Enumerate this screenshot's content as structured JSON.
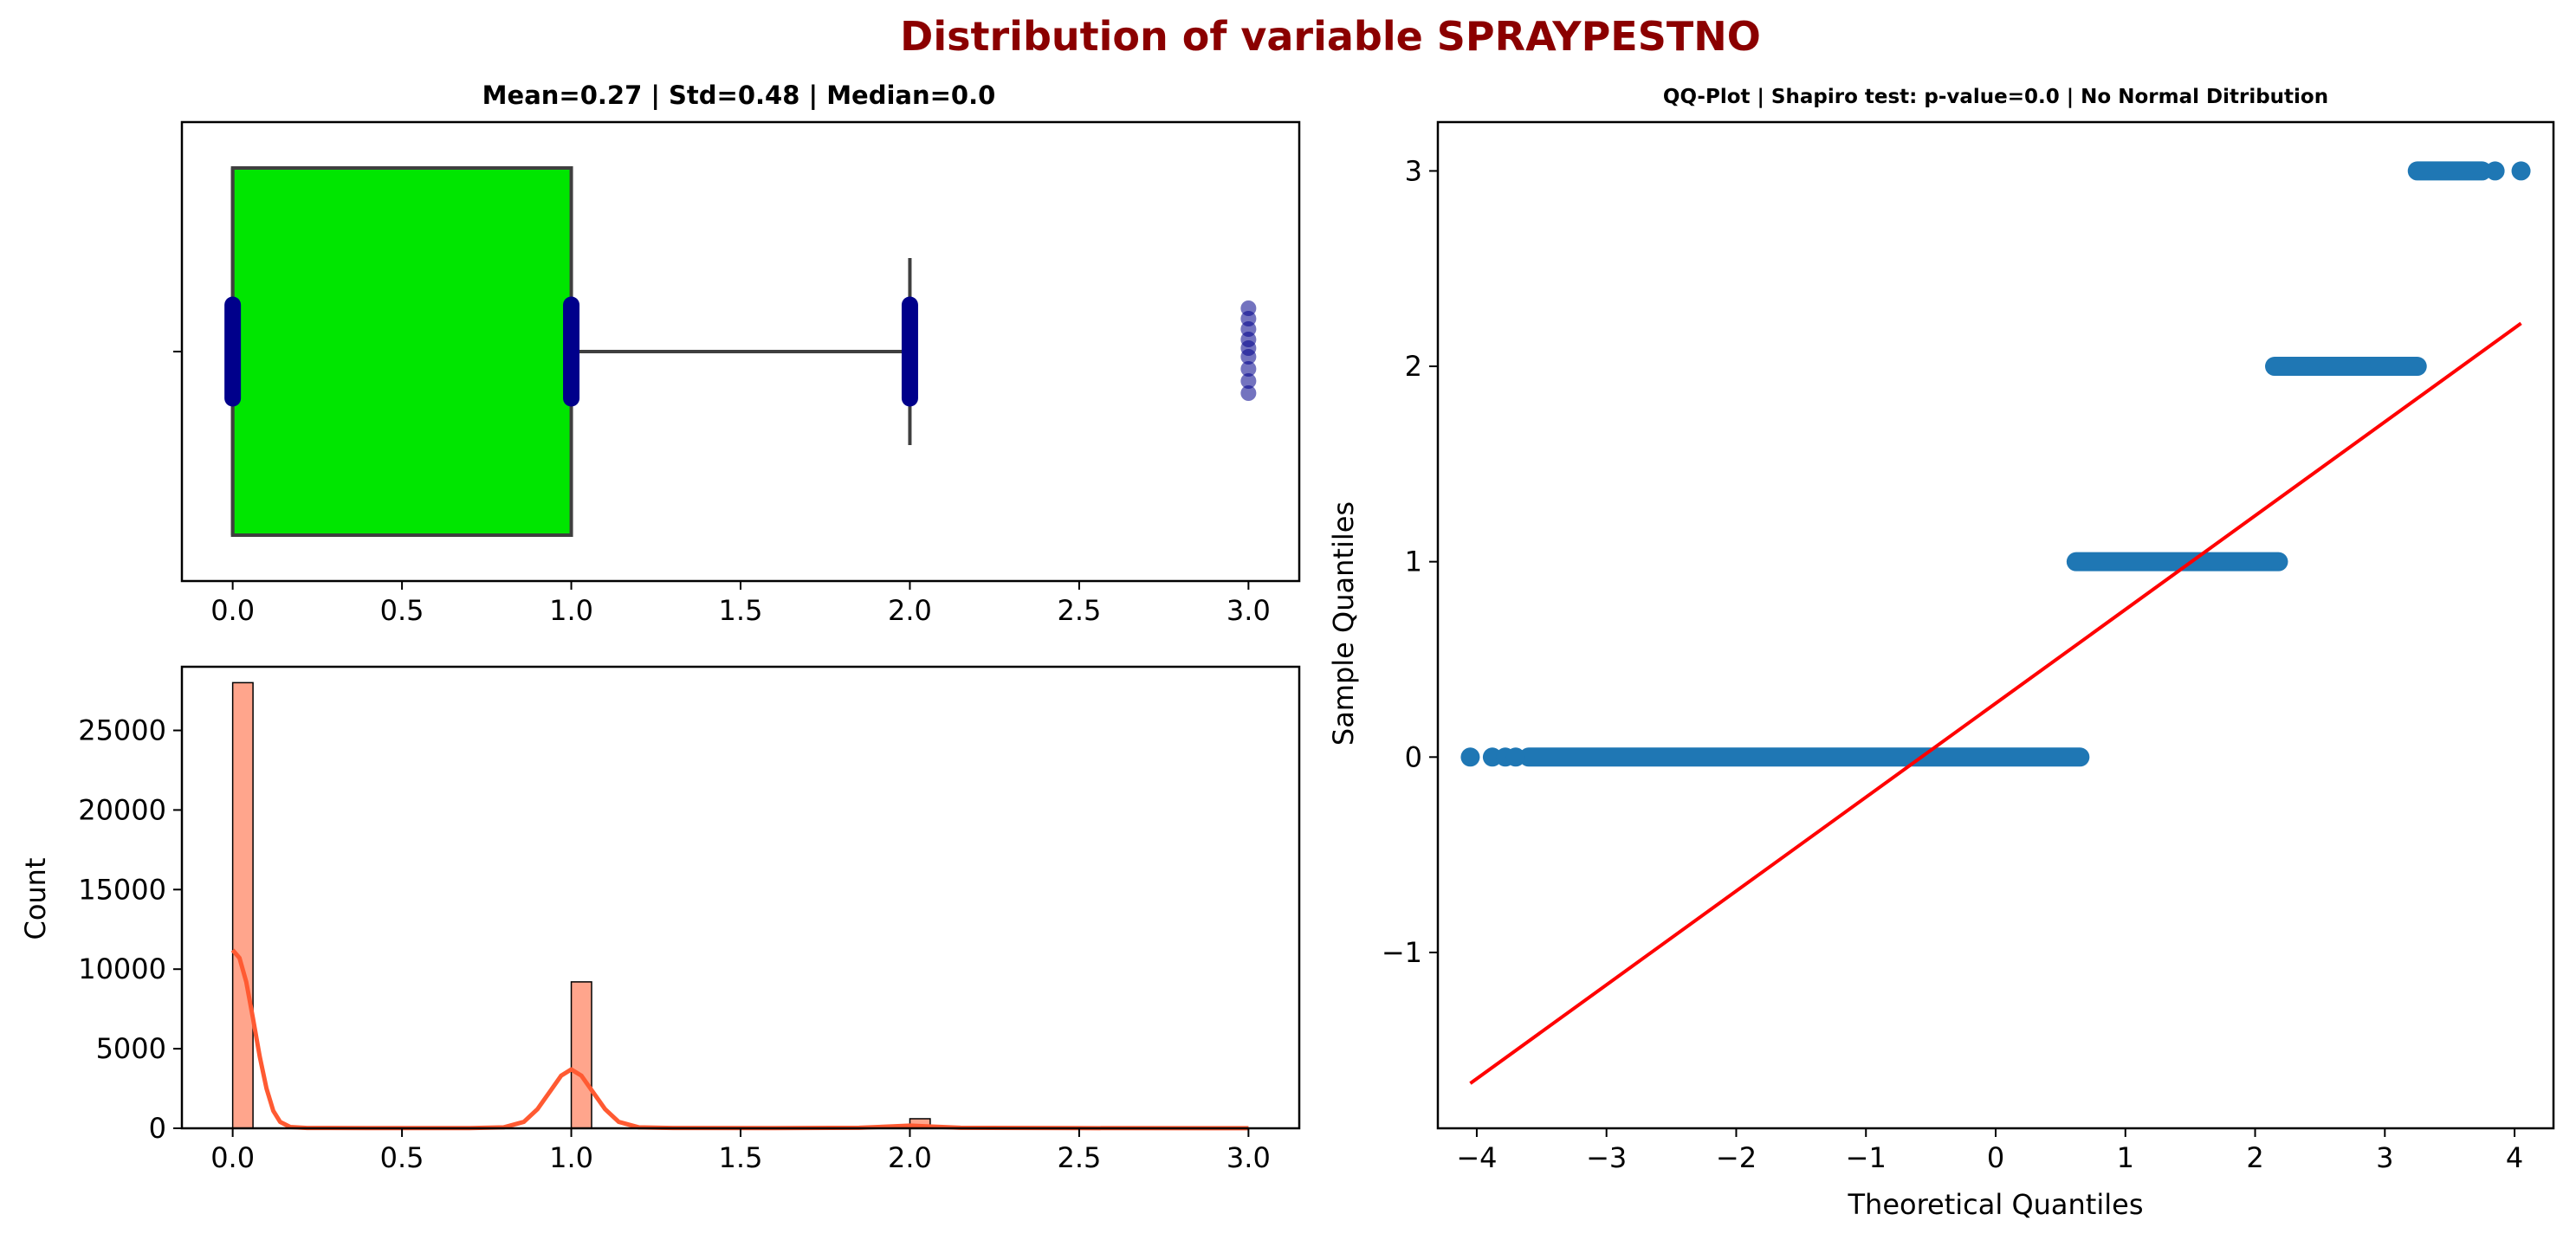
{
  "figure": {
    "title": "Distribution of variable SPRAYPESTNO",
    "title_color": "#8b0000"
  },
  "chart_data": [
    {
      "type": "box",
      "title": "Mean=0.27 | Std=0.48 | Median=0.0",
      "xlim": [
        -0.15,
        3.15
      ],
      "xticks": [
        0.0,
        0.5,
        1.0,
        1.5,
        2.0,
        2.5,
        3.0
      ],
      "xtick_labels": [
        "0.0",
        "0.5",
        "1.0",
        "1.5",
        "2.0",
        "2.5",
        "3.0"
      ],
      "box": {
        "q1": 0.0,
        "median": 0.0,
        "q3": 1.0,
        "whisker_low": 0.0,
        "whisker_high": 2.0
      },
      "outliers": [
        3.0,
        3.0,
        3.0,
        3.0,
        3.0,
        3.0,
        3.0,
        3.0,
        3.0
      ],
      "strip_values": [
        0.0,
        1.0,
        2.0
      ],
      "box_color": "#00e600",
      "point_color": "#00008b",
      "grid": false
    },
    {
      "type": "histogram",
      "title": "",
      "ylabel": "Count",
      "xlim": [
        -0.15,
        3.15
      ],
      "ylim": [
        0,
        29000
      ],
      "xticks": [
        0.0,
        0.5,
        1.0,
        1.5,
        2.0,
        2.5,
        3.0
      ],
      "xtick_labels": [
        "0.0",
        "0.5",
        "1.0",
        "1.5",
        "2.0",
        "2.5",
        "3.0"
      ],
      "yticks": [
        0,
        5000,
        10000,
        15000,
        20000,
        25000
      ],
      "ytick_labels": [
        "0",
        "5000",
        "10000",
        "15000",
        "20000",
        "25000"
      ],
      "bin_width": 0.06,
      "bins": [
        {
          "x": 0.0,
          "count": 28000
        },
        {
          "x": 1.0,
          "count": 9200
        },
        {
          "x": 2.0,
          "count": 600
        },
        {
          "x": 3.0,
          "count": 15
        }
      ],
      "kde": [
        [
          0.0,
          11200
        ],
        [
          0.02,
          10700
        ],
        [
          0.04,
          9200
        ],
        [
          0.06,
          6900
        ],
        [
          0.08,
          4500
        ],
        [
          0.1,
          2500
        ],
        [
          0.12,
          1100
        ],
        [
          0.14,
          400
        ],
        [
          0.17,
          80
        ],
        [
          0.22,
          20
        ],
        [
          0.4,
          10
        ],
        [
          0.7,
          15
        ],
        [
          0.8,
          60
        ],
        [
          0.86,
          400
        ],
        [
          0.9,
          1200
        ],
        [
          0.94,
          2400
        ],
        [
          0.97,
          3300
        ],
        [
          1.0,
          3700
        ],
        [
          1.03,
          3300
        ],
        [
          1.06,
          2400
        ],
        [
          1.1,
          1200
        ],
        [
          1.14,
          400
        ],
        [
          1.2,
          60
        ],
        [
          1.3,
          20
        ],
        [
          1.6,
          15
        ],
        [
          1.85,
          30
        ],
        [
          1.95,
          120
        ],
        [
          2.0,
          170
        ],
        [
          2.05,
          120
        ],
        [
          2.15,
          30
        ],
        [
          2.5,
          10
        ],
        [
          3.0,
          8
        ]
      ],
      "bar_color": "#ffa58c",
      "line_color": "#ff5a32",
      "grid": false
    },
    {
      "type": "scatter",
      "title": "QQ-Plot | Shapiro test: p-value=0.0 | No Normal Ditribution",
      "xlabel": "Theoretical Quantiles",
      "ylabel": "Sample Quantiles",
      "xlim": [
        -4.3,
        4.3
      ],
      "ylim": [
        -1.9,
        3.25
      ],
      "xticks": [
        -4,
        -3,
        -2,
        -1,
        0,
        1,
        2,
        3,
        4
      ],
      "xtick_labels": [
        "−4",
        "−3",
        "−2",
        "−1",
        "0",
        "1",
        "2",
        "3",
        "4"
      ],
      "yticks": [
        -1,
        0,
        1,
        2,
        3
      ],
      "ytick_labels": [
        "−1",
        "0",
        "1",
        "2",
        "3"
      ],
      "series": [
        {
          "y": 0,
          "x_from": -3.6,
          "x_to": 0.65,
          "isolated_x": [
            -4.05,
            -3.88,
            -3.78,
            -3.7
          ]
        },
        {
          "y": 1,
          "x_from": 0.62,
          "x_to": 2.18,
          "isolated_x": []
        },
        {
          "y": 2,
          "x_from": 2.15,
          "x_to": 3.25,
          "isolated_x": []
        },
        {
          "y": 3,
          "x_from": 3.25,
          "x_to": 3.75,
          "isolated_x": [
            3.85,
            4.05
          ]
        }
      ],
      "reference_line": {
        "x": [
          -4.05,
          4.05
        ],
        "y": [
          -1.67,
          2.22
        ]
      },
      "point_color": "#1f77b4",
      "line_color": "#ff0000",
      "grid": false
    }
  ]
}
